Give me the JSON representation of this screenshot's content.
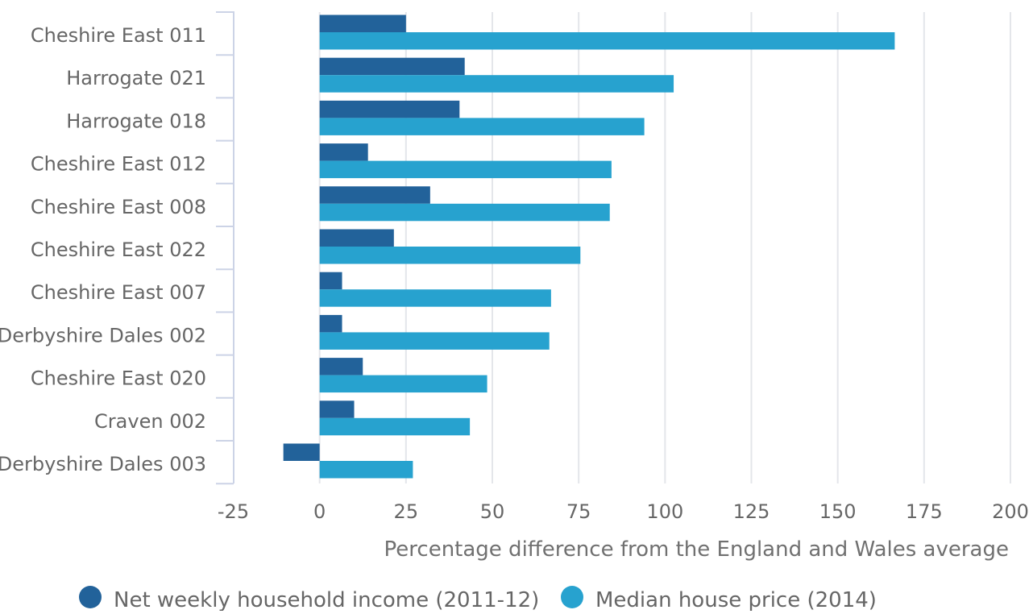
{
  "chart_data": {
    "type": "bar",
    "orientation": "horizontal",
    "categories": [
      "Cheshire East 011",
      "Harrogate 021",
      "Harrogate 018",
      "Cheshire East 012",
      "Cheshire East 008",
      "Cheshire East 022",
      "Cheshire East 007",
      "Derbyshire Dales 002",
      "Cheshire East 020",
      "Craven 002",
      "Derbyshire Dales 003"
    ],
    "series": [
      {
        "name": "Net weekly household income (2011-12)",
        "color": "#22629a",
        "values": [
          25,
          42,
          40.5,
          14,
          32,
          21.5,
          6.5,
          6.5,
          12.5,
          10,
          -10.5
        ]
      },
      {
        "name": "Median house price (2014)",
        "color": "#27a2cf",
        "values": [
          166.5,
          102.5,
          94,
          84.5,
          84,
          75.5,
          67,
          66.5,
          48.5,
          43.5,
          27
        ]
      }
    ],
    "xlim": [
      -25,
      200
    ],
    "xticks": [
      "-25",
      "0",
      "25",
      "50",
      "75",
      "100",
      "125",
      "150",
      "175",
      "200"
    ],
    "xlabel": "Percentage difference from the England and Wales average",
    "ylabel": "",
    "title": "",
    "grid": "vertical",
    "legend": "bottom"
  }
}
